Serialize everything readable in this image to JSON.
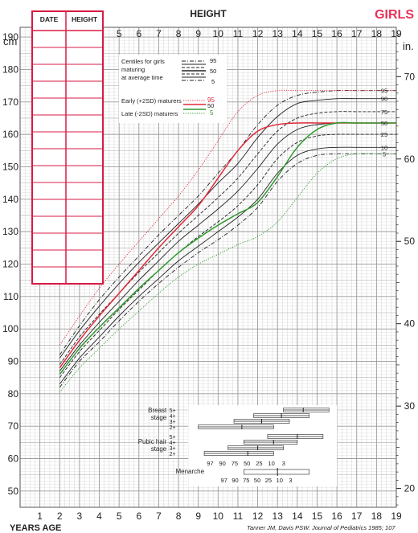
{
  "header": {
    "title": "HEIGHT",
    "sex_label": "GIRLS",
    "citation": "Tanner JM, Davis PSW. Journal of Pediatrics 1985; 107"
  },
  "axes": {
    "left_unit": "cm",
    "right_unit": "in.",
    "bottom_title": "YEARS AGE",
    "y_ticks_cm": [
      50,
      60,
      70,
      80,
      90,
      100,
      110,
      120,
      130,
      140,
      150,
      160,
      170,
      180,
      190
    ],
    "y_ticks_in": [
      20,
      30,
      40,
      50,
      60,
      70
    ],
    "x_ticks_bottom": [
      1,
      2,
      3,
      4,
      5,
      6,
      7,
      8,
      9,
      10,
      11,
      12,
      13,
      14,
      15,
      16,
      17,
      18,
      19
    ],
    "x_ticks_top": [
      5,
      6,
      7,
      8,
      9,
      10,
      11,
      12,
      13,
      14,
      15,
      16,
      17,
      18,
      19
    ]
  },
  "record_table": {
    "headers": [
      "DATE",
      "HEIGHT"
    ],
    "rows": 15
  },
  "legend": {
    "average_title": [
      "Centiles for girls",
      "maturing",
      "at average time"
    ],
    "average_labels": [
      "95",
      "50",
      "5"
    ],
    "early_label": "Early (+2SD) maturers",
    "early_value": "95",
    "mid_value": "50",
    "late_label": "Late (-2SD) maturers",
    "late_value": "5"
  },
  "end_labels": [
    "95",
    "90",
    "75",
    "50",
    "25",
    "10",
    "5"
  ],
  "maturity": {
    "breast_label": [
      "Breast",
      "stage"
    ],
    "pubic_label": [
      "Pubic hair",
      "stage"
    ],
    "menarche_label": "Menarche",
    "stage_labels": [
      "5+",
      "4+",
      "3+",
      "2+"
    ],
    "centile_labels": [
      "97",
      "90",
      "75",
      "50",
      "25",
      "10",
      "3"
    ]
  },
  "colors": {
    "grid": "#9a9a9a",
    "ink": "#222222",
    "average": "#222222",
    "early": "#e0293a",
    "late": "#2e9a2e",
    "table": "#d81b45"
  },
  "chart_data": {
    "type": "line",
    "title": "HEIGHT",
    "xlabel": "YEARS AGE",
    "ylabel": "cm",
    "xlim": [
      0,
      19
    ],
    "ylim": [
      45,
      193
    ],
    "x": [
      2,
      3,
      4,
      5,
      6,
      7,
      8,
      9,
      10,
      11,
      12,
      13,
      14,
      15,
      16,
      17,
      18,
      19
    ],
    "series": [
      {
        "name": "95",
        "style": "average-dashdot",
        "values": [
          92,
          101,
          109,
          116,
          122.5,
          129,
          135,
          141,
          148,
          155,
          163,
          169,
          172,
          173,
          173.5,
          173.5,
          173.5,
          173.5
        ]
      },
      {
        "name": "90",
        "style": "average-solid",
        "values": [
          91,
          99.5,
          107,
          114,
          120.5,
          126.5,
          132.5,
          138.5,
          145,
          151,
          159,
          165.5,
          169.5,
          170.5,
          171,
          171,
          171,
          171
        ]
      },
      {
        "name": "75",
        "style": "average-dash",
        "values": [
          89,
          97.5,
          104.5,
          111,
          117.5,
          123.5,
          129.5,
          135,
          140.5,
          146.5,
          154,
          161,
          165,
          166.5,
          167,
          167,
          167,
          167
        ]
      },
      {
        "name": "50",
        "style": "average-solid",
        "values": [
          87,
          95,
          102,
          108.5,
          115,
          121,
          127,
          132,
          137,
          142.5,
          149.5,
          157,
          161.5,
          163,
          163.5,
          163.5,
          163.5,
          163.5
        ]
      },
      {
        "name": "25",
        "style": "average-dash",
        "values": [
          85,
          93,
          99.5,
          106,
          112,
          118,
          123.5,
          128.5,
          133,
          138,
          144.5,
          152.5,
          157.5,
          159.5,
          160,
          160,
          160,
          160
        ]
      },
      {
        "name": "10",
        "style": "average-solid",
        "values": [
          83,
          91,
          97.5,
          104,
          110,
          115.5,
          121,
          125.5,
          130,
          134.5,
          140,
          148,
          153.5,
          155.5,
          156,
          156,
          156,
          156
        ]
      },
      {
        "name": "5",
        "style": "average-dashdot",
        "values": [
          82,
          90,
          96,
          102.5,
          108.5,
          114,
          119,
          123.5,
          127.5,
          132,
          137.5,
          145.5,
          151,
          153.5,
          154,
          154,
          154,
          154
        ]
      },
      {
        "name": "Early (+2SD) maturers 95",
        "style": "early-dotted",
        "values": [
          95,
          104,
          112.5,
          120,
          127,
          134,
          141,
          149,
          158,
          167,
          172,
          173.5,
          173.5,
          173.5,
          173.5,
          173.5,
          173.5,
          173.5
        ]
      },
      {
        "name": "Early (+2SD) maturers 50",
        "style": "early-solid",
        "values": [
          88,
          96.5,
          104,
          111,
          118,
          125,
          131.5,
          138,
          146.5,
          155,
          161,
          163,
          163.5,
          163.5,
          163.5,
          163.5,
          163.5,
          163.5
        ]
      },
      {
        "name": "Late (-2SD) maturers 50",
        "style": "late-solid",
        "values": [
          86,
          94,
          100.5,
          106.5,
          112.5,
          118,
          123.5,
          128,
          132,
          135.5,
          139,
          147,
          156,
          161.5,
          163.5,
          163.5,
          163.5,
          163.5
        ]
      },
      {
        "name": "Late (-2SD) maturers 5",
        "style": "late-dotted",
        "values": [
          80.5,
          88,
          94,
          100,
          105.5,
          111,
          116,
          120,
          123,
          126,
          128.5,
          133,
          140.5,
          148,
          152.5,
          154,
          154,
          154
        ]
      }
    ],
    "maturity_bars": [
      {
        "label": "Breast stage",
        "stages": [
          {
            "stage": "5+",
            "p3": 13.3,
            "p50": 14.3,
            "p97": 15.6
          },
          {
            "stage": "4+",
            "p3": 11.8,
            "p50": 13.2,
            "p97": 14.6
          },
          {
            "stage": "3+",
            "p3": 10.8,
            "p50": 12.2,
            "p97": 13.6
          },
          {
            "stage": "2+",
            "p3": 9.0,
            "p50": 11.2,
            "p97": 12.8
          }
        ]
      },
      {
        "label": "Pubic hair stage",
        "stages": [
          {
            "stage": "5+",
            "p3": 12.5,
            "p50": 14.0,
            "p97": 15.3
          },
          {
            "stage": "4+",
            "p3": 11.3,
            "p50": 12.8,
            "p97": 14.0
          },
          {
            "stage": "3+",
            "p3": 10.5,
            "p50": 12.0,
            "p97": 13.3
          },
          {
            "stage": "2+",
            "p3": 9.3,
            "p50": 11.5,
            "p97": 12.8
          }
        ]
      },
      {
        "label": "Menarche",
        "stages": [
          {
            "stage": "",
            "p3": 11.3,
            "p50": 13.0,
            "p97": 14.6
          }
        ]
      }
    ]
  }
}
